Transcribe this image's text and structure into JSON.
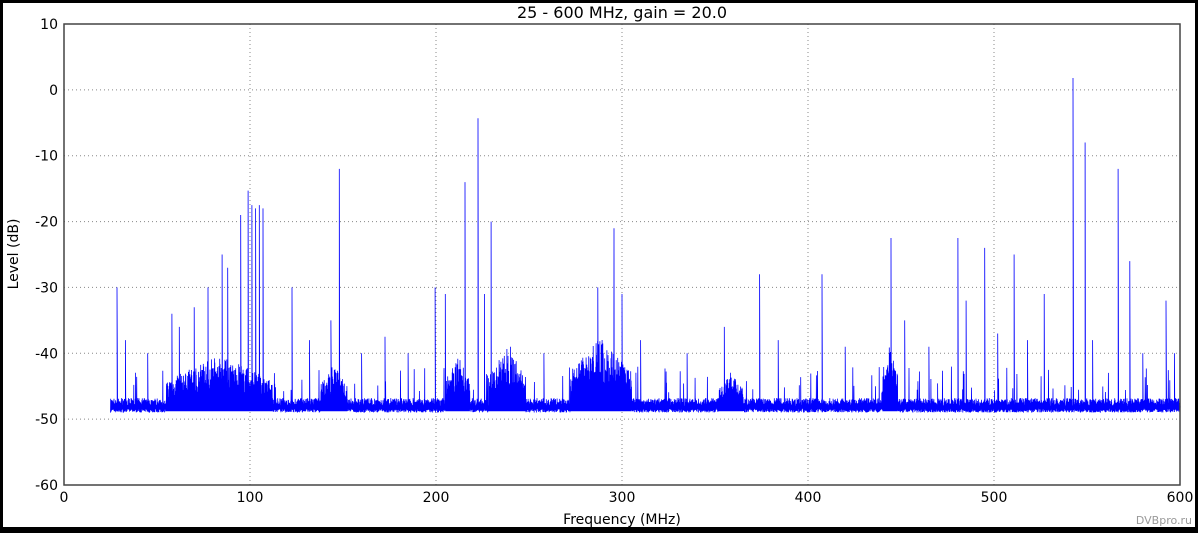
{
  "chart_data": {
    "type": "line",
    "title": "25 - 600 MHz, gain = 20.0",
    "xlabel": "Frequency (MHz)",
    "ylabel": "Level (dB)",
    "xlim": [
      0,
      600
    ],
    "ylim": [
      -60,
      10
    ],
    "xticks": [
      0,
      100,
      200,
      300,
      400,
      500,
      600
    ],
    "yticks": [
      10,
      0,
      -10,
      -20,
      -30,
      -40,
      -50,
      -60
    ],
    "grid": true,
    "series_color": "#0000ff",
    "freq_range": [
      25,
      600
    ],
    "noise_floor_db": -48,
    "broadband_regions": [
      {
        "from": 55,
        "to": 112,
        "level": -42
      },
      {
        "from": 138,
        "to": 152,
        "level": -43
      },
      {
        "from": 205,
        "to": 218,
        "level": -42
      },
      {
        "from": 228,
        "to": 248,
        "level": -41
      },
      {
        "from": 272,
        "to": 305,
        "level": -40
      },
      {
        "from": 352,
        "to": 365,
        "level": -44
      },
      {
        "from": 440,
        "to": 448,
        "level": -40
      }
    ],
    "peaks": [
      [
        28.5,
        -30
      ],
      [
        33,
        -38
      ],
      [
        45,
        -40
      ],
      [
        58,
        -34
      ],
      [
        62,
        -36
      ],
      [
        70,
        -33
      ],
      [
        77.4,
        -30
      ],
      [
        85,
        -25
      ],
      [
        88,
        -27
      ],
      [
        95,
        -19
      ],
      [
        99,
        -15.3
      ],
      [
        101,
        -17.5
      ],
      [
        103,
        -18
      ],
      [
        105,
        -17.5
      ],
      [
        107,
        -18
      ],
      [
        122.6,
        -30
      ],
      [
        132,
        -38
      ],
      [
        143.5,
        -35
      ],
      [
        148,
        -12
      ],
      [
        160,
        -40
      ],
      [
        172.6,
        -37.5
      ],
      [
        185,
        -40
      ],
      [
        199.5,
        -30
      ],
      [
        205,
        -31
      ],
      [
        215.6,
        -14
      ],
      [
        222.6,
        -4.3
      ],
      [
        226,
        -31
      ],
      [
        229.6,
        -20
      ],
      [
        240,
        -39
      ],
      [
        258,
        -40
      ],
      [
        287,
        -30
      ],
      [
        295.7,
        -21
      ],
      [
        300,
        -31
      ],
      [
        310,
        -38
      ],
      [
        335,
        -40
      ],
      [
        355,
        -36
      ],
      [
        374,
        -28
      ],
      [
        384,
        -38
      ],
      [
        407.5,
        -28
      ],
      [
        420,
        -39
      ],
      [
        444.6,
        -22.5
      ],
      [
        452,
        -35
      ],
      [
        465,
        -39
      ],
      [
        480.6,
        -22.5
      ],
      [
        485,
        -32
      ],
      [
        495,
        -24
      ],
      [
        502,
        -37
      ],
      [
        510.8,
        -25
      ],
      [
        518,
        -38
      ],
      [
        527,
        -31
      ],
      [
        542.5,
        1.8
      ],
      [
        549,
        -8
      ],
      [
        553,
        -38
      ],
      [
        566.7,
        -12
      ],
      [
        573,
        -26
      ],
      [
        580,
        -40
      ],
      [
        592.5,
        -32
      ],
      [
        597,
        -40
      ]
    ]
  },
  "watermark": "DVBpro.ru"
}
